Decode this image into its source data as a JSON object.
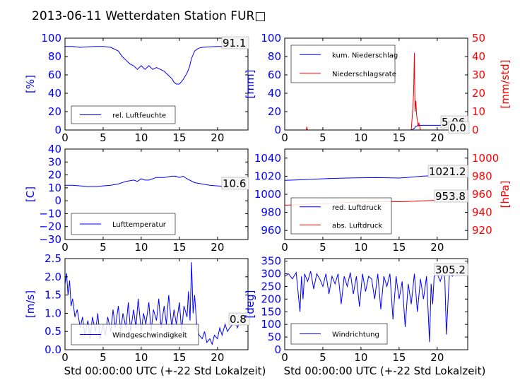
{
  "figure_title": "2013-06-11 Wetterdaten Station FUR□",
  "colors": {
    "primary": "#0000ff",
    "secondary": "#ff0000",
    "text": "#000000"
  },
  "chart_data": [
    {
      "id": "humidity",
      "type": "line",
      "xlim": [
        0,
        24
      ],
      "ylim": [
        0,
        100
      ],
      "yticks": [
        "0",
        "20",
        "40",
        "60",
        "80",
        "100"
      ],
      "xticks": [
        "0",
        "5",
        "10",
        "15",
        "20"
      ],
      "ylabel": "[%]",
      "annotation": "91.1",
      "series": [
        {
          "name": "rel. Luftfeuchte",
          "color": "#0000ff",
          "x": [
            0,
            1,
            2,
            3,
            4,
            5,
            6,
            7,
            7.5,
            8,
            8.5,
            9,
            9.5,
            10,
            10.5,
            11,
            11.5,
            12,
            12.5,
            13,
            13.5,
            14,
            14.3,
            14.6,
            15,
            15.5,
            16,
            16.3,
            16.6,
            17,
            17.5,
            18,
            19,
            20,
            21,
            22,
            23,
            24
          ],
          "y": [
            91,
            91,
            90,
            90.5,
            91,
            91,
            90,
            86,
            80,
            76,
            72,
            70,
            66,
            70,
            66,
            70,
            66,
            68,
            66,
            64,
            60,
            56,
            52,
            50,
            50,
            55,
            62,
            68,
            78,
            86,
            89,
            90,
            90.5,
            91,
            91,
            91,
            91,
            91.1
          ]
        }
      ],
      "legend": "bottom-left"
    },
    {
      "id": "precip",
      "type": "line",
      "xlim": [
        0,
        24
      ],
      "ylim": [
        0,
        100
      ],
      "yticks": [
        "0",
        "20",
        "40",
        "60",
        "80",
        "100"
      ],
      "xticks": [
        "0",
        "5",
        "10",
        "15",
        "20"
      ],
      "ylabel": "[mm]",
      "y2lim": [
        0,
        50
      ],
      "y2ticks": [
        "0",
        "10",
        "20",
        "30",
        "40",
        "50"
      ],
      "y2label": "[mm/std]",
      "annotations": [
        "5.06",
        "0.0"
      ],
      "series": [
        {
          "name": "kum. Niederschlag",
          "color": "#0000ff",
          "axis": "left",
          "x": [
            0,
            16.5,
            16.8,
            17,
            17.2,
            17.5,
            18,
            20,
            22,
            24
          ],
          "y": [
            0,
            0,
            0.5,
            2,
            4,
            5,
            5.06,
            5.06,
            5.06,
            5.06
          ]
        },
        {
          "name": "Niederschlagsrate",
          "color": "#ff0000",
          "axis": "right",
          "x": [
            0,
            2.8,
            2.9,
            3,
            16.6,
            16.8,
            16.9,
            17,
            17.05,
            17.1,
            17.2,
            17.3,
            17.4,
            17.5,
            17.6,
            17.8,
            18,
            24
          ],
          "y": [
            0,
            0,
            1.5,
            0,
            0,
            12,
            20,
            42,
            25,
            10,
            16,
            8,
            5,
            2,
            4,
            0,
            0,
            0
          ]
        }
      ],
      "legend": "top-left"
    },
    {
      "id": "temperature",
      "type": "line",
      "xlim": [
        0,
        24
      ],
      "ylim": [
        -30,
        40
      ],
      "yticks": [
        "−30",
        "−20",
        "−10",
        "0",
        "10",
        "20",
        "30",
        "40"
      ],
      "xticks": [
        "0",
        "5",
        "10",
        "15",
        "20"
      ],
      "ylabel": "[C]",
      "annotation": "10.6",
      "series": [
        {
          "name": "Lufttemperatur",
          "color": "#0000ff",
          "x": [
            0,
            1,
            2,
            3,
            4,
            5,
            6,
            7,
            8,
            9,
            9.5,
            10,
            10.5,
            11,
            12,
            13,
            14,
            14.5,
            15,
            15.5,
            16,
            17,
            18,
            19,
            20,
            21,
            22,
            23,
            24
          ],
          "y": [
            12,
            12,
            11.5,
            11,
            11,
            11.5,
            12,
            13,
            15,
            16,
            15,
            17,
            16,
            16,
            18,
            18,
            19,
            19,
            18,
            19,
            17,
            14,
            13,
            12,
            11.5,
            11,
            11,
            10.8,
            10.6
          ]
        }
      ],
      "legend": "bottom-left"
    },
    {
      "id": "pressure",
      "type": "line",
      "xlim": [
        0,
        24
      ],
      "ylim": [
        950,
        1050
      ],
      "yticks": [
        "960",
        "980",
        "1000",
        "1020",
        "1040"
      ],
      "xticks": [
        "0",
        "5",
        "10",
        "15",
        "20"
      ],
      "y2lim": [
        910,
        1010
      ],
      "y2ticks": [
        "920",
        "940",
        "960",
        "980",
        "1000"
      ],
      "y2label": "[hPa]",
      "annotations": [
        "1021.2",
        "953.8"
      ],
      "series": [
        {
          "name": "red. Luftdruck",
          "color": "#0000ff",
          "axis": "left",
          "x": [
            0,
            2,
            4,
            6,
            8,
            10,
            12,
            14,
            15,
            16,
            18,
            20,
            22,
            24
          ],
          "y": [
            1015.5,
            1016,
            1016.8,
            1017.5,
            1018,
            1018.3,
            1018.4,
            1018.2,
            1018,
            1018.5,
            1020,
            1020.8,
            1021,
            1021.2
          ]
        },
        {
          "name": "abs. Luftdruck",
          "color": "#ff0000",
          "axis": "right",
          "x": [
            0,
            2,
            4,
            6,
            8,
            10,
            12,
            14,
            15,
            16,
            18,
            20,
            22,
            24
          ],
          "y": [
            948,
            948.5,
            949.5,
            950,
            951,
            951.5,
            951.8,
            952,
            951.8,
            952,
            952.8,
            953.3,
            953.6,
            953.8
          ]
        }
      ],
      "legend": "bottom-left"
    },
    {
      "id": "windspeed",
      "type": "line",
      "xlim": [
        0,
        24
      ],
      "ylim": [
        0,
        2.5
      ],
      "yticks": [
        "0.0",
        "0.5",
        "1.0",
        "1.5",
        "2.0",
        "2.5"
      ],
      "xticks": [
        "0",
        "5",
        "10",
        "15",
        "20"
      ],
      "ylabel": "[m/s]",
      "xlabel": "Std 00:00:00 UTC (+-22 Std Lokalzeit)",
      "annotation": "0.8",
      "series": [
        {
          "name": "Windgeschwindigkeit",
          "color": "#0000ff",
          "x": [
            0,
            0.2,
            0.4,
            0.6,
            0.8,
            1,
            1.3,
            1.6,
            2,
            2.3,
            2.6,
            3,
            3.3,
            3.6,
            4,
            4.3,
            4.6,
            5,
            5.3,
            5.6,
            6,
            6.3,
            6.6,
            7,
            7.3,
            7.6,
            8,
            8.3,
            8.6,
            9,
            9.3,
            9.6,
            10,
            10.3,
            10.6,
            11,
            11.3,
            11.6,
            12,
            12.3,
            12.6,
            13,
            13.3,
            13.6,
            14,
            14.3,
            14.6,
            15,
            15.3,
            15.6,
            16,
            16.2,
            16.4,
            16.6,
            16.8,
            17,
            17.3,
            17.6,
            18,
            18.3,
            18.6,
            19,
            19.3,
            19.6,
            20,
            20.3,
            20.6,
            21,
            21.3,
            21.6,
            22,
            22.3,
            22.6,
            23,
            23.3,
            23.6,
            24
          ],
          "y": [
            1.8,
            2.1,
            1.5,
            1.9,
            1.2,
            1.4,
            0.9,
            1.1,
            0.6,
            0.9,
            0.4,
            0.8,
            0.3,
            0.9,
            0.5,
            1.0,
            0.3,
            0.7,
            0.4,
            0.9,
            0.5,
            1.1,
            0.6,
            1.2,
            0.5,
            1.0,
            0.6,
            1.3,
            0.5,
            1.1,
            0.6,
            1.4,
            0.5,
            1.0,
            0.7,
            1.3,
            0.5,
            1.1,
            0.8,
            1.4,
            0.6,
            1.2,
            0.7,
            1.5,
            0.6,
            1.1,
            0.7,
            1.3,
            0.5,
            1.2,
            0.9,
            1.6,
            0.8,
            2.4,
            1.0,
            1.5,
            0.6,
            0.4,
            0.3,
            0.5,
            0.2,
            0.3,
            0.15,
            0.4,
            0.3,
            0.6,
            0.4,
            0.7,
            0.5,
            0.6,
            0.7,
            0.9,
            0.6,
            0.8,
            0.7,
            0.9,
            0.8
          ]
        }
      ],
      "legend": "bottom-left"
    },
    {
      "id": "winddir",
      "type": "line",
      "xlim": [
        0,
        24
      ],
      "ylim": [
        0,
        360
      ],
      "yticks": [
        "0",
        "50",
        "100",
        "150",
        "200",
        "250",
        "300",
        "350"
      ],
      "xticks": [
        "0",
        "5",
        "10",
        "15",
        "20"
      ],
      "ylabel": "[deg]",
      "xlabel": "Std 00:00:00 UTC (+-22 Std Lokalzeit)",
      "annotation": "305.2",
      "series": [
        {
          "name": "Windrichtung",
          "color": "#0000ff",
          "x": [
            0,
            0.5,
            1,
            1.5,
            2,
            2.2,
            2.4,
            2.6,
            3,
            3.4,
            3.8,
            4.2,
            4.6,
            5,
            5.4,
            5.8,
            6.2,
            6.6,
            7,
            7.4,
            7.8,
            8.2,
            8.6,
            9,
            9.4,
            9.8,
            10.2,
            10.6,
            11,
            11.4,
            11.8,
            12.2,
            12.6,
            13,
            13.4,
            13.8,
            14.2,
            14.6,
            15,
            15.4,
            15.8,
            16.2,
            16.6,
            17,
            17.4,
            17.8,
            18.2,
            18.6,
            19,
            19.2,
            19.4,
            19.6,
            20,
            20.4,
            20.8,
            21,
            21.2,
            21.6,
            22,
            22.4,
            22.8,
            23.2,
            23.6,
            24
          ],
          "y": [
            290,
            300,
            280,
            305,
            150,
            290,
            200,
            300,
            270,
            310,
            240,
            300,
            280,
            250,
            300,
            220,
            290,
            260,
            300,
            180,
            290,
            250,
            305,
            220,
            290,
            170,
            300,
            230,
            290,
            280,
            200,
            300,
            160,
            290,
            250,
            300,
            120,
            290,
            200,
            270,
            90,
            260,
            180,
            300,
            150,
            280,
            200,
            290,
            30,
            260,
            180,
            290,
            300,
            270,
            310,
            280,
            60,
            300,
            290,
            305,
            300,
            295,
            310,
            305.2
          ]
        }
      ],
      "legend": "bottom-left"
    }
  ]
}
